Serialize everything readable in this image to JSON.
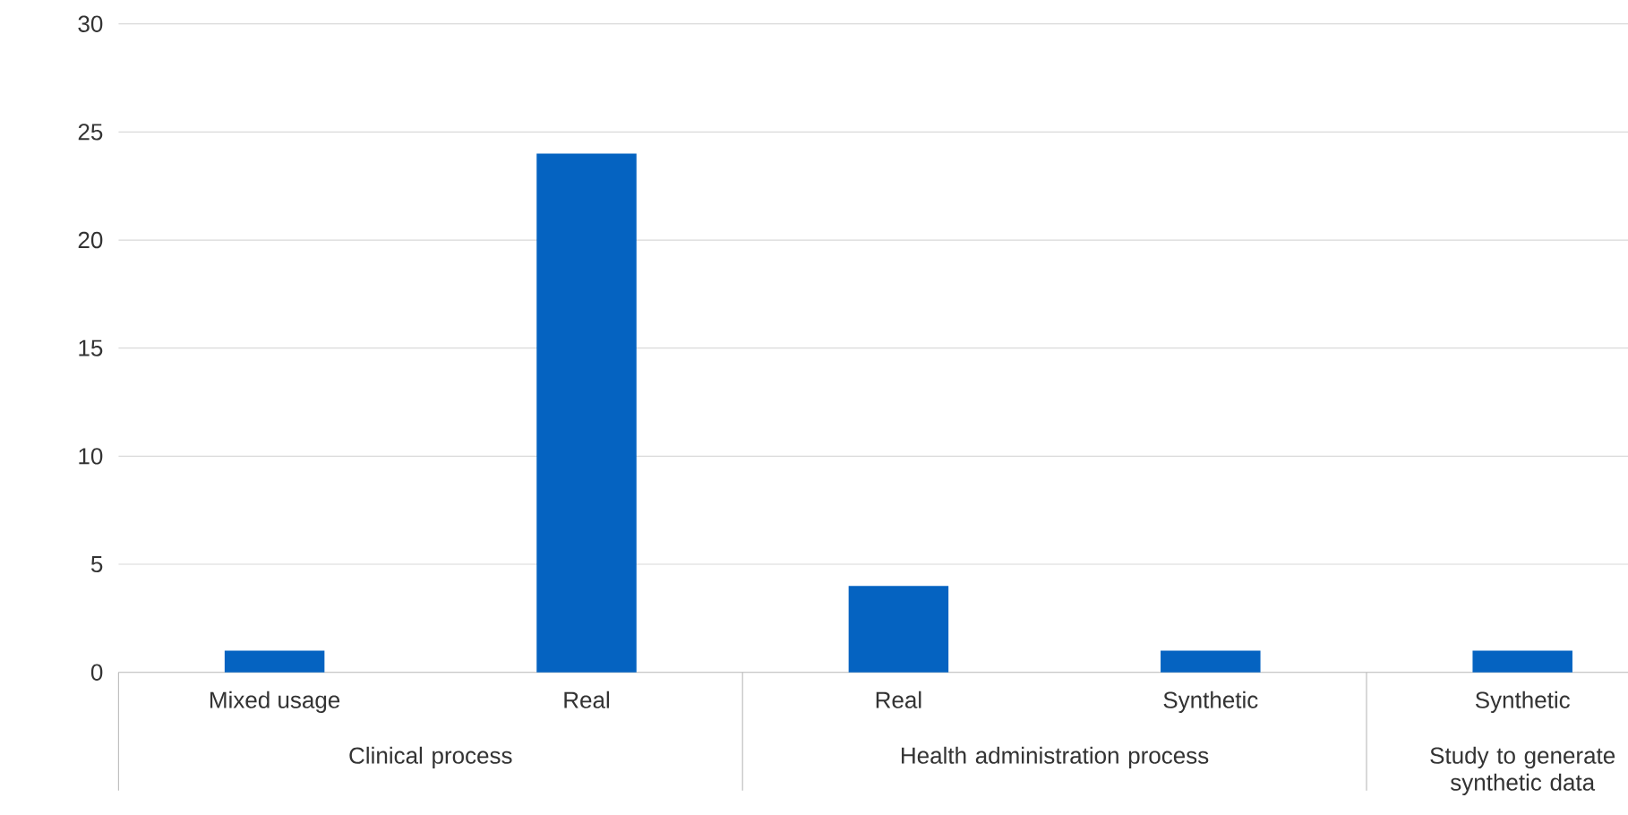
{
  "chart_data": {
    "type": "bar",
    "categories": [
      "Mixed usage",
      "Real",
      "Real",
      "Synthetic",
      "Synthetic"
    ],
    "values": [
      1,
      24,
      4,
      1,
      1
    ],
    "color": "#0563c1",
    "ylim": [
      0,
      30
    ],
    "yticks": [
      0,
      5,
      10,
      15,
      20,
      25,
      30
    ],
    "grid": "y",
    "annotations": [
      "Clinical process",
      "Health administration process",
      "Study to generate synthetic data"
    ]
  }
}
